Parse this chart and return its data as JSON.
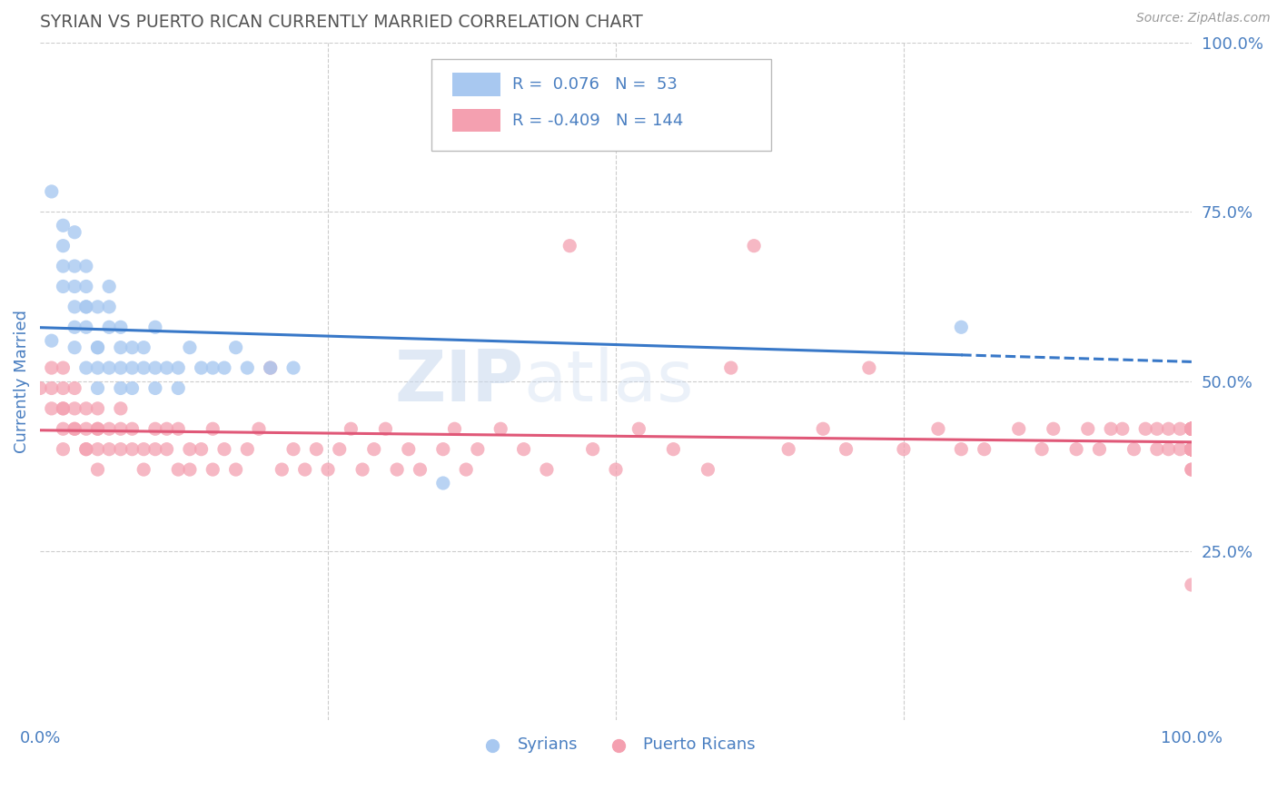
{
  "title": "SYRIAN VS PUERTO RICAN CURRENTLY MARRIED CORRELATION CHART",
  "source": "Source: ZipAtlas.com",
  "ylabel": "Currently Married",
  "xlim": [
    0.0,
    1.0
  ],
  "ylim": [
    0.0,
    1.0
  ],
  "ytick_labels_right": [
    "100.0%",
    "75.0%",
    "50.0%",
    "25.0%"
  ],
  "ytick_positions_right": [
    1.0,
    0.75,
    0.5,
    0.25
  ],
  "syrian_R": 0.076,
  "syrian_N": 53,
  "puerto_rican_R": -0.409,
  "puerto_rican_N": 144,
  "syrian_color": "#a8c8f0",
  "puerto_rican_color": "#f4a0b0",
  "syrian_line_color": "#3878c8",
  "puerto_rican_line_color": "#e05878",
  "grid_color": "#cccccc",
  "title_color": "#555555",
  "axis_label_color": "#4a7fc1",
  "legend_text_color": "#4a7fc1",
  "background_color": "#ffffff",
  "syrian_x": [
    0.01,
    0.01,
    0.02,
    0.02,
    0.02,
    0.02,
    0.03,
    0.03,
    0.03,
    0.03,
    0.03,
    0.03,
    0.04,
    0.04,
    0.04,
    0.04,
    0.04,
    0.04,
    0.05,
    0.05,
    0.05,
    0.05,
    0.05,
    0.06,
    0.06,
    0.06,
    0.06,
    0.07,
    0.07,
    0.07,
    0.07,
    0.08,
    0.08,
    0.08,
    0.09,
    0.09,
    0.1,
    0.1,
    0.1,
    0.11,
    0.12,
    0.12,
    0.13,
    0.14,
    0.15,
    0.16,
    0.17,
    0.18,
    0.2,
    0.22,
    0.35,
    0.8,
    0.5
  ],
  "syrian_y": [
    0.56,
    0.78,
    0.7,
    0.73,
    0.67,
    0.64,
    0.67,
    0.64,
    0.61,
    0.58,
    0.55,
    0.72,
    0.64,
    0.61,
    0.67,
    0.61,
    0.58,
    0.52,
    0.55,
    0.52,
    0.55,
    0.49,
    0.61,
    0.64,
    0.61,
    0.58,
    0.52,
    0.58,
    0.55,
    0.52,
    0.49,
    0.55,
    0.52,
    0.49,
    0.52,
    0.55,
    0.52,
    0.49,
    0.58,
    0.52,
    0.52,
    0.49,
    0.55,
    0.52,
    0.52,
    0.52,
    0.55,
    0.52,
    0.52,
    0.52,
    0.35,
    0.58,
    0.85
  ],
  "puerto_rican_x": [
    0.0,
    0.01,
    0.01,
    0.01,
    0.02,
    0.02,
    0.02,
    0.02,
    0.02,
    0.02,
    0.03,
    0.03,
    0.03,
    0.03,
    0.04,
    0.04,
    0.04,
    0.04,
    0.05,
    0.05,
    0.05,
    0.05,
    0.05,
    0.06,
    0.06,
    0.07,
    0.07,
    0.07,
    0.08,
    0.08,
    0.09,
    0.09,
    0.1,
    0.1,
    0.11,
    0.11,
    0.12,
    0.12,
    0.13,
    0.13,
    0.14,
    0.15,
    0.15,
    0.16,
    0.17,
    0.18,
    0.19,
    0.2,
    0.21,
    0.22,
    0.23,
    0.24,
    0.25,
    0.26,
    0.27,
    0.28,
    0.29,
    0.3,
    0.31,
    0.32,
    0.33,
    0.35,
    0.36,
    0.37,
    0.38,
    0.4,
    0.42,
    0.44,
    0.46,
    0.48,
    0.5,
    0.52,
    0.55,
    0.58,
    0.6,
    0.62,
    0.65,
    0.68,
    0.7,
    0.72,
    0.75,
    0.78,
    0.8,
    0.82,
    0.85,
    0.87,
    0.88,
    0.9,
    0.91,
    0.92,
    0.93,
    0.94,
    0.95,
    0.96,
    0.97,
    0.97,
    0.98,
    0.98,
    0.99,
    0.99,
    1.0,
    1.0,
    1.0,
    1.0,
    1.0,
    1.0,
    1.0,
    1.0,
    1.0,
    1.0,
    1.0,
    1.0,
    1.0,
    1.0,
    1.0,
    1.0,
    1.0,
    1.0,
    1.0,
    1.0,
    1.0,
    1.0,
    1.0,
    1.0,
    1.0,
    1.0,
    1.0,
    1.0,
    1.0,
    1.0,
    1.0,
    1.0,
    1.0,
    1.0,
    1.0,
    1.0,
    1.0,
    1.0,
    1.0,
    1.0,
    1.0
  ],
  "puerto_rican_y": [
    0.49,
    0.49,
    0.52,
    0.46,
    0.46,
    0.49,
    0.52,
    0.46,
    0.43,
    0.4,
    0.43,
    0.46,
    0.49,
    0.43,
    0.4,
    0.43,
    0.46,
    0.4,
    0.43,
    0.46,
    0.4,
    0.43,
    0.37,
    0.4,
    0.43,
    0.4,
    0.43,
    0.46,
    0.4,
    0.43,
    0.37,
    0.4,
    0.43,
    0.4,
    0.43,
    0.4,
    0.37,
    0.43,
    0.4,
    0.37,
    0.4,
    0.37,
    0.43,
    0.4,
    0.37,
    0.4,
    0.43,
    0.52,
    0.37,
    0.4,
    0.37,
    0.4,
    0.37,
    0.4,
    0.43,
    0.37,
    0.4,
    0.43,
    0.37,
    0.4,
    0.37,
    0.4,
    0.43,
    0.37,
    0.4,
    0.43,
    0.4,
    0.37,
    0.7,
    0.4,
    0.37,
    0.43,
    0.4,
    0.37,
    0.52,
    0.7,
    0.4,
    0.43,
    0.4,
    0.52,
    0.4,
    0.43,
    0.4,
    0.4,
    0.43,
    0.4,
    0.43,
    0.4,
    0.43,
    0.4,
    0.43,
    0.43,
    0.4,
    0.43,
    0.4,
    0.43,
    0.4,
    0.43,
    0.4,
    0.43,
    0.4,
    0.43,
    0.4,
    0.43,
    0.4,
    0.43,
    0.4,
    0.4,
    0.43,
    0.4,
    0.4,
    0.43,
    0.4,
    0.43,
    0.4,
    0.4,
    0.43,
    0.4,
    0.43,
    0.4,
    0.43,
    0.4,
    0.43,
    0.4,
    0.43,
    0.4,
    0.43,
    0.4,
    0.2,
    0.4,
    0.43,
    0.4,
    0.4,
    0.43,
    0.37,
    0.4,
    0.43,
    0.4,
    0.43,
    0.4,
    0.37
  ]
}
